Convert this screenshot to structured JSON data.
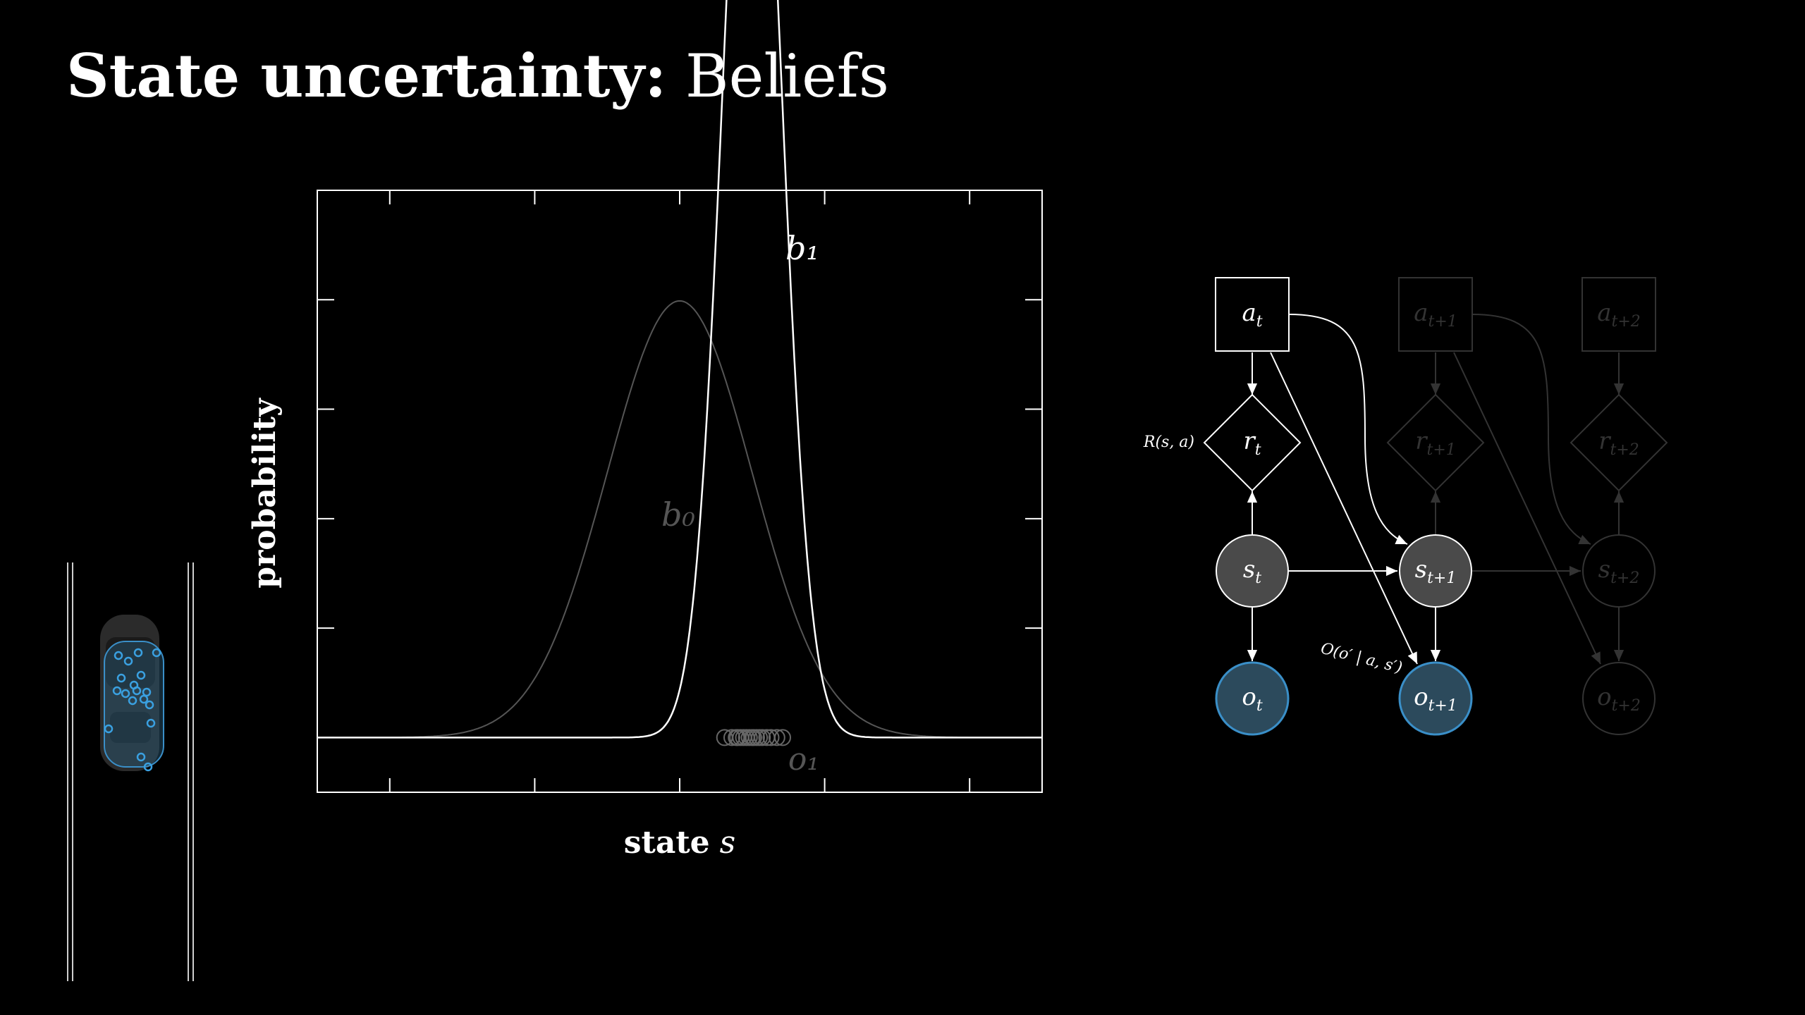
{
  "slide": {
    "title_bold": "State uncertainty:",
    "title_rest": " Beliefs"
  },
  "plot": {
    "ylabel": "probability",
    "xlabel_word": "state",
    "xlabel_var": "s",
    "curve_b0_label": "b₀",
    "curve_b1_label": "b₁",
    "obs_label": "o₁"
  },
  "chart_data": {
    "type": "line",
    "title": "",
    "xlabel": "state s",
    "ylabel": "probability",
    "xlim": [
      -5,
      5
    ],
    "ylim": [
      -0.05,
      0.5
    ],
    "grid": false,
    "series": [
      {
        "name": "b₀",
        "kind": "gaussian",
        "mean": 0,
        "std": 1,
        "color": "#555555"
      },
      {
        "name": "b₁",
        "kind": "gaussian",
        "mean": 1,
        "std": 0.4,
        "color": "#ffffff"
      }
    ],
    "observations": {
      "name": "o₁",
      "y": 0,
      "x": [
        0.62,
        0.72,
        0.78,
        0.8,
        0.84,
        0.88,
        0.92,
        0.96,
        1.0,
        1.02,
        1.06,
        1.1,
        1.14,
        1.2,
        1.26,
        1.34,
        1.42
      ]
    }
  },
  "graph": {
    "nodes": {
      "a_t": {
        "base": "a",
        "sub": "t"
      },
      "a_t1": {
        "base": "a",
        "sub": "t+1"
      },
      "a_t2": {
        "base": "a",
        "sub": "t+2"
      },
      "r_t": {
        "base": "r",
        "sub": "t"
      },
      "r_t1": {
        "base": "r",
        "sub": "t+1"
      },
      "r_t2": {
        "base": "r",
        "sub": "t+2"
      },
      "s_t": {
        "base": "s",
        "sub": "t"
      },
      "s_t1": {
        "base": "s",
        "sub": "t+1"
      },
      "s_t2": {
        "base": "s",
        "sub": "t+2"
      },
      "o_t": {
        "base": "o",
        "sub": "t"
      },
      "o_t1": {
        "base": "o",
        "sub": "t+1"
      },
      "o_t2": {
        "base": "o",
        "sub": "t+2"
      }
    },
    "reward_fn": "R(s, a)",
    "obs_fn": "O(o′ | a, s′)"
  },
  "car": {
    "particle_color": "#3aa0e0"
  },
  "colors": {
    "background": "#000000",
    "foreground": "#ffffff",
    "faded": "#333333",
    "state_fill": "#4a4a4a",
    "obs_fill": "#2c4a5c",
    "obs_stroke": "#3a8fc8",
    "particle": "#3aa0e0"
  }
}
